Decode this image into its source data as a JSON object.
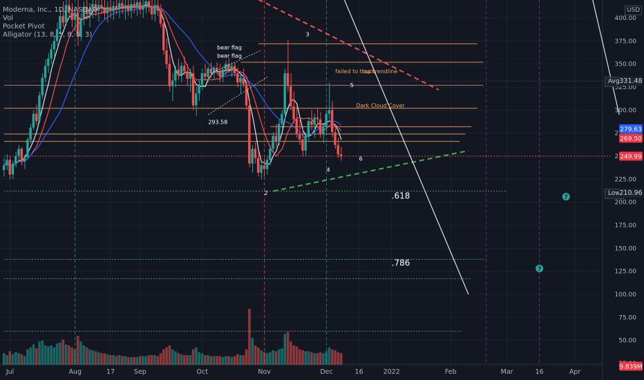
{
  "legend": {
    "title": "Moderna, Inc., 1D, NASDAQ",
    "line2": "Vol",
    "line3": "Pocket Pivot",
    "line4": "Alligator (13, 8, 5, 8, 5, 3)"
  },
  "currency": "USD",
  "colors": {
    "background": "#131722",
    "up": "#26a69a",
    "down": "#ef5350",
    "grid": "#1e222d",
    "axis_text": "#b2b5be",
    "orange": "#f7a35c",
    "green_dashed": "#4caf50",
    "red_dashed": "#ef5350",
    "white_line": "#d1d4dc"
  },
  "chart_data": {
    "type": "candlestick",
    "y_axis": {
      "min": 20,
      "max": 420,
      "ticks": [
        400,
        375,
        350,
        325,
        300,
        275,
        250,
        225,
        200,
        175,
        150,
        125,
        100,
        75,
        50,
        25
      ]
    },
    "x_axis": {
      "ticks": [
        {
          "label": "Jul",
          "bar": 2
        },
        {
          "label": "Aug",
          "bar": 24
        },
        {
          "label": "17",
          "bar": 36
        },
        {
          "label": "Sep",
          "bar": 46
        },
        {
          "label": "Oct",
          "bar": 67
        },
        {
          "label": "Nov",
          "bar": 88
        },
        {
          "label": "Dec",
          "bar": 109
        },
        {
          "label": "16",
          "bar": 120
        },
        {
          "label": "2022",
          "bar": 131
        },
        {
          "label": "Feb",
          "bar": 151
        },
        {
          "label": "Mar",
          "bar": 170
        },
        {
          "label": "16",
          "bar": 181
        },
        {
          "label": "Apr",
          "bar": 193
        }
      ]
    },
    "bars": [
      [
        235,
        248,
        228,
        240,
        1.2
      ],
      [
        240,
        252,
        235,
        246,
        1.0
      ],
      [
        246,
        250,
        225,
        230,
        1.4
      ],
      [
        230,
        245,
        225,
        242,
        1.1
      ],
      [
        242,
        255,
        238,
        250,
        1.3
      ],
      [
        250,
        262,
        244,
        258,
        1.2
      ],
      [
        258,
        260,
        240,
        244,
        1.1
      ],
      [
        244,
        252,
        236,
        249,
        0.9
      ],
      [
        249,
        270,
        247,
        268,
        1.6
      ],
      [
        268,
        285,
        264,
        281,
        1.8
      ],
      [
        281,
        300,
        278,
        296,
        2.1
      ],
      [
        296,
        306,
        284,
        288,
        1.7
      ],
      [
        288,
        320,
        286,
        316,
        2.4
      ],
      [
        316,
        340,
        312,
        335,
        2.5
      ],
      [
        335,
        355,
        330,
        348,
        2.0
      ],
      [
        348,
        362,
        340,
        356,
        1.9
      ],
      [
        356,
        372,
        350,
        366,
        2.0
      ],
      [
        366,
        380,
        358,
        375,
        1.8
      ],
      [
        375,
        395,
        370,
        388,
        2.2
      ],
      [
        388,
        410,
        382,
        402,
        2.3
      ],
      [
        402,
        418,
        390,
        395,
        2.6
      ],
      [
        395,
        420,
        392,
        414,
        2.1
      ],
      [
        414,
        420,
        400,
        406,
        2.0
      ],
      [
        406,
        416,
        390,
        398,
        1.8
      ],
      [
        398,
        412,
        385,
        406,
        1.6
      ],
      [
        406,
        420,
        370,
        380,
        3.0
      ],
      [
        380,
        405,
        375,
        400,
        2.4
      ],
      [
        400,
        418,
        392,
        412,
        2.0
      ],
      [
        412,
        420,
        398,
        404,
        1.8
      ],
      [
        404,
        416,
        390,
        410,
        1.6
      ],
      [
        410,
        420,
        400,
        415,
        1.5
      ],
      [
        415,
        420,
        402,
        408,
        1.4
      ],
      [
        408,
        420,
        396,
        414,
        1.3
      ],
      [
        414,
        420,
        404,
        410,
        1.2
      ],
      [
        410,
        420,
        398,
        405,
        1.2
      ],
      [
        405,
        418,
        395,
        412,
        1.1
      ],
      [
        412,
        420,
        400,
        407,
        1.0
      ],
      [
        407,
        418,
        398,
        413,
        1.0
      ],
      [
        413,
        420,
        404,
        409,
        0.9
      ],
      [
        409,
        420,
        400,
        416,
        1.0
      ],
      [
        416,
        420,
        404,
        410,
        0.9
      ],
      [
        410,
        420,
        398,
        414,
        0.9
      ],
      [
        414,
        420,
        402,
        408,
        0.8
      ],
      [
        408,
        420,
        400,
        415,
        0.8
      ],
      [
        415,
        420,
        405,
        411,
        0.8
      ],
      [
        411,
        420,
        402,
        417,
        0.8
      ],
      [
        417,
        420,
        404,
        409,
        0.9
      ],
      [
        409,
        420,
        400,
        414,
        0.9
      ],
      [
        414,
        420,
        405,
        418,
        0.9
      ],
      [
        418,
        420,
        406,
        412,
        1.0
      ],
      [
        412,
        420,
        398,
        404,
        1.0
      ],
      [
        404,
        420,
        396,
        414,
        1.0
      ],
      [
        414,
        420,
        402,
        408,
        0.9
      ],
      [
        408,
        415,
        390,
        394,
        1.2
      ],
      [
        394,
        400,
        360,
        365,
        1.6
      ],
      [
        365,
        378,
        345,
        350,
        1.8
      ],
      [
        350,
        360,
        320,
        326,
        2.0
      ],
      [
        326,
        340,
        310,
        332,
        1.6
      ],
      [
        332,
        348,
        325,
        344,
        1.4
      ],
      [
        344,
        356,
        333,
        338,
        1.2
      ],
      [
        338,
        352,
        330,
        348,
        1.1
      ],
      [
        348,
        358,
        338,
        342,
        1.0
      ],
      [
        342,
        350,
        326,
        334,
        1.0
      ],
      [
        334,
        345,
        320,
        340,
        1.0
      ],
      [
        340,
        348,
        300,
        305,
        1.6
      ],
      [
        305,
        325,
        293.58,
        318,
        1.8
      ],
      [
        318,
        332,
        310,
        328,
        1.3
      ],
      [
        328,
        345,
        322,
        340,
        1.2
      ],
      [
        340,
        350,
        332,
        336,
        1.0
      ],
      [
        336,
        348,
        330,
        345,
        1.0
      ],
      [
        345,
        352,
        335,
        340,
        0.9
      ],
      [
        340,
        348,
        333,
        346,
        0.9
      ],
      [
        346,
        352,
        338,
        342,
        0.9
      ],
      [
        342,
        350,
        330,
        336,
        0.9
      ],
      [
        336,
        348,
        330,
        344,
        0.8
      ],
      [
        344,
        354,
        338,
        350,
        0.9
      ],
      [
        350,
        356,
        340,
        344,
        0.9
      ],
      [
        344,
        352,
        336,
        348,
        0.8
      ],
      [
        348,
        352,
        336,
        340,
        0.9
      ],
      [
        340,
        346,
        325,
        330,
        1.1
      ],
      [
        330,
        340,
        318,
        335,
        1.0
      ],
      [
        335,
        345,
        325,
        328,
        1.0
      ],
      [
        328,
        336,
        300,
        305,
        1.6
      ],
      [
        305,
        312,
        238,
        242,
        5.8
      ],
      [
        242,
        262,
        232,
        258,
        2.8
      ],
      [
        258,
        265,
        242,
        248,
        2.0
      ],
      [
        248,
        255,
        228,
        232,
        1.8
      ],
      [
        232,
        245,
        225,
        240,
        1.5
      ],
      [
        240,
        248,
        228,
        236,
        1.3
      ],
      [
        236,
        250,
        230,
        246,
        1.2
      ],
      [
        246,
        262,
        240,
        258,
        1.3
      ],
      [
        258,
        276,
        254,
        272,
        1.5
      ],
      [
        272,
        285,
        260,
        266,
        1.4
      ],
      [
        266,
        290,
        262,
        285,
        1.6
      ],
      [
        285,
        300,
        280,
        296,
        1.7
      ],
      [
        296,
        345,
        290,
        340,
        3.2
      ],
      [
        340,
        376,
        320,
        326,
        3.4
      ],
      [
        326,
        340,
        300,
        304,
        2.4
      ],
      [
        304,
        320,
        285,
        290,
        2.0
      ],
      [
        290,
        304,
        270,
        274,
        1.9
      ],
      [
        274,
        290,
        262,
        268,
        1.6
      ],
      [
        268,
        282,
        250,
        256,
        1.5
      ],
      [
        256,
        275,
        250,
        272,
        1.4
      ],
      [
        272,
        292,
        266,
        288,
        1.4
      ],
      [
        288,
        300,
        278,
        284,
        1.3
      ],
      [
        284,
        296,
        270,
        292,
        1.2
      ],
      [
        292,
        302,
        284,
        290,
        1.2
      ],
      [
        290,
        298,
        270,
        274,
        1.3
      ],
      [
        274,
        286,
        264,
        282,
        1.2
      ],
      [
        282,
        300,
        276,
        296,
        1.4
      ],
      [
        296,
        330,
        290,
        300,
        1.8
      ],
      [
        300,
        310,
        270,
        276,
        1.6
      ],
      [
        276,
        285,
        258,
        262,
        1.5
      ],
      [
        262,
        270,
        248,
        252,
        1.3
      ],
      [
        252,
        260,
        245,
        249.99,
        1.2
      ]
    ],
    "current_price": 249.99,
    "badges": [
      {
        "value": "279.63",
        "price": 279.63,
        "color": "#2962ff"
      },
      {
        "value": "269.50",
        "price": 269.5,
        "color": "#f23645"
      },
      {
        "value": "249.99",
        "price": 249.99,
        "color": "#f23645"
      },
      {
        "value": "9.839M",
        "price": 22,
        "color": "#f23645"
      }
    ],
    "avg": {
      "label": "Avg",
      "value": "331.48",
      "price": 331.48
    },
    "low": {
      "label": "Low",
      "value": "210.96",
      "price": 210.96
    },
    "annotations": [
      {
        "text": "bear flag",
        "bar": 72,
        "price": 366,
        "color": "#ffffff"
      },
      {
        "text": "bear flag",
        "bar": 72,
        "price": 357,
        "color": "#ffffff"
      },
      {
        "text": "293.58",
        "bar": 69,
        "price": 285,
        "color": "#ffffff"
      },
      {
        "text": "3",
        "bar": 102,
        "price": 380,
        "color": "#ffffff"
      },
      {
        "text": "failed to touch",
        "bar": 112,
        "price": 340,
        "color": "#f7a35c"
      },
      {
        "text": "top trendline",
        "bar": 121,
        "price": 340,
        "color": "#f7a35c"
      },
      {
        "text": "5",
        "bar": 117,
        "price": 325,
        "color": "#ffffff"
      },
      {
        "text": "Dark Cloud Cover",
        "bar": 119,
        "price": 303,
        "color": "#f7a35c"
      },
      {
        "text": "4",
        "bar": 109,
        "price": 233,
        "color": "#ffffff"
      },
      {
        "text": "6",
        "bar": 120,
        "price": 245,
        "color": "#ffffff"
      },
      {
        "text": "2",
        "bar": 88,
        "price": 208,
        "color": "#ffffff"
      },
      {
        "text": ".618",
        "bar": 131,
        "price": 204,
        "color": "#ffffff"
      },
      {
        "text": ".786",
        "bar": 131,
        "price": 131,
        "color": "#ffffff"
      }
    ]
  }
}
